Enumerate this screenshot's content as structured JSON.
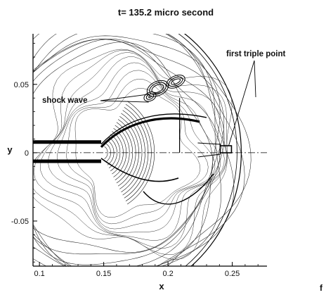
{
  "chart_data": {
    "type": "contour",
    "title": "t= 135.2  micro second",
    "xlabel": "x",
    "ylabel": "y",
    "xlim": [
      0.095,
      0.277
    ],
    "ylim": [
      -0.083,
      0.087
    ],
    "xticks": [
      {
        "value": 0.1,
        "label": "0.1"
      },
      {
        "value": 0.15,
        "label": "0.15"
      },
      {
        "value": 0.2,
        "label": "0.2"
      },
      {
        "value": 0.25,
        "label": "0.25"
      }
    ],
    "yticks": [
      {
        "value": 0.05,
        "label": "0.05"
      },
      {
        "value": 0.0,
        "label": "0"
      },
      {
        "value": -0.05,
        "label": "-0.05"
      }
    ],
    "annotations": [
      {
        "text": "shock wave",
        "x": 0.188,
        "y": 0.039
      },
      {
        "text": "first triple point",
        "x": 0.247,
        "y": 0.002
      }
    ],
    "nozzle": {
      "x_end": 0.148,
      "y_half_width": 0.006
    },
    "shock_front": {
      "x_center": 0.149,
      "y_center": 0.0,
      "radius": 0.108
    },
    "grid": false
  },
  "corner_fragment": "f"
}
